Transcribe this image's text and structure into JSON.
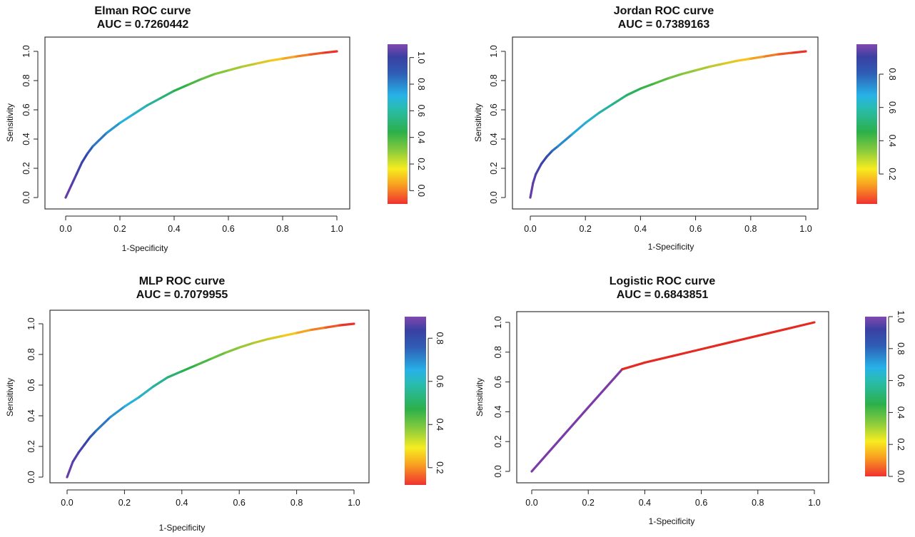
{
  "chart_data": [
    {
      "type": "line",
      "title": "Elman ROC curve",
      "subtitle": "AUC = 0.7260442",
      "xlabel": "1-Specificity",
      "ylabel": "Sensitivity",
      "xlim": [
        0,
        1
      ],
      "ylim": [
        0,
        1
      ],
      "x_ticks": [
        "0.0",
        "0.2",
        "0.4",
        "0.6",
        "0.8",
        "1.0"
      ],
      "y_ticks": [
        "0.0",
        "0.2",
        "0.4",
        "0.6",
        "0.8",
        "1.0"
      ],
      "series": [
        {
          "x": [
            0,
            0.02,
            0.04,
            0.06,
            0.08,
            0.1,
            0.15,
            0.2,
            0.25,
            0.3,
            0.35,
            0.4,
            0.45,
            0.5,
            0.55,
            0.6,
            0.65,
            0.7,
            0.75,
            0.8,
            0.85,
            0.9,
            0.95,
            1.0
          ],
          "y": [
            0,
            0.08,
            0.16,
            0.24,
            0.3,
            0.35,
            0.44,
            0.51,
            0.57,
            0.63,
            0.68,
            0.73,
            0.77,
            0.81,
            0.845,
            0.87,
            0.895,
            0.915,
            0.935,
            0.95,
            0.965,
            0.978,
            0.99,
            1.0
          ]
        }
      ],
      "colorbar": {
        "ticks": [
          "0.0",
          "0.2",
          "0.4",
          "0.6",
          "0.8",
          "1.0"
        ],
        "range": [
          -0.1,
          1.1
        ]
      },
      "grid": false,
      "legend": "none"
    },
    {
      "type": "line",
      "title": "Jordan ROC curve",
      "subtitle": "AUC = 0.7389163",
      "xlabel": "1-Specificity",
      "ylabel": "Sensitivity",
      "xlim": [
        0,
        1
      ],
      "ylim": [
        0,
        1
      ],
      "x_ticks": [
        "0.0",
        "0.2",
        "0.4",
        "0.6",
        "0.8",
        "1.0"
      ],
      "y_ticks": [
        "0.0",
        "0.2",
        "0.4",
        "0.6",
        "0.8",
        "1.0"
      ],
      "series": [
        {
          "x": [
            0,
            0.01,
            0.02,
            0.04,
            0.06,
            0.08,
            0.1,
            0.15,
            0.2,
            0.25,
            0.3,
            0.35,
            0.4,
            0.45,
            0.5,
            0.55,
            0.6,
            0.65,
            0.7,
            0.75,
            0.8,
            0.85,
            0.9,
            0.95,
            1.0
          ],
          "y": [
            0,
            0.1,
            0.16,
            0.23,
            0.28,
            0.32,
            0.35,
            0.43,
            0.51,
            0.58,
            0.64,
            0.7,
            0.745,
            0.78,
            0.815,
            0.845,
            0.87,
            0.895,
            0.915,
            0.935,
            0.95,
            0.965,
            0.98,
            0.99,
            1.0
          ]
        }
      ],
      "colorbar": {
        "ticks": [
          "0.2",
          "0.4",
          "0.6",
          "0.8"
        ],
        "range": [
          0.02,
          0.98
        ]
      },
      "grid": false,
      "legend": "none"
    },
    {
      "type": "line",
      "title": "MLP ROC curve",
      "subtitle": "AUC = 0.7079955",
      "xlabel": "1-Specificity",
      "ylabel": "Sensitivity",
      "xlim": [
        0,
        1
      ],
      "ylim": [
        0,
        1
      ],
      "x_ticks": [
        "0.0",
        "0.2",
        "0.4",
        "0.6",
        "0.8",
        "1.0"
      ],
      "y_ticks": [
        "0.0",
        "0.2",
        "0.4",
        "0.6",
        "0.8",
        "1.0"
      ],
      "series": [
        {
          "x": [
            0,
            0.02,
            0.04,
            0.06,
            0.08,
            0.1,
            0.15,
            0.2,
            0.25,
            0.3,
            0.35,
            0.4,
            0.45,
            0.5,
            0.55,
            0.6,
            0.65,
            0.7,
            0.75,
            0.8,
            0.85,
            0.9,
            0.95,
            1.0
          ],
          "y": [
            0,
            0.1,
            0.16,
            0.21,
            0.26,
            0.3,
            0.39,
            0.46,
            0.52,
            0.59,
            0.65,
            0.69,
            0.73,
            0.77,
            0.81,
            0.845,
            0.875,
            0.9,
            0.92,
            0.94,
            0.96,
            0.975,
            0.99,
            1.0
          ]
        }
      ],
      "colorbar": {
        "ticks": [
          "0.2",
          "0.4",
          "0.6",
          "0.8"
        ],
        "range": [
          0.12,
          0.9
        ]
      },
      "grid": false,
      "legend": "none"
    },
    {
      "type": "line",
      "title": "Logistic ROC curve",
      "subtitle": "AUC = 0.6843851",
      "xlabel": "1-Specificity",
      "ylabel": "Sensitivity",
      "xlim": [
        0,
        1
      ],
      "ylim": [
        0,
        1
      ],
      "x_ticks": [
        "0.0",
        "0.2",
        "0.4",
        "0.6",
        "0.8",
        "1.0"
      ],
      "y_ticks": [
        "0.0",
        "0.2",
        "0.4",
        "0.6",
        "0.8",
        "1.0"
      ],
      "series": [
        {
          "x": [
            0,
            0.1,
            0.2,
            0.32,
            0.4,
            0.5,
            0.6,
            0.7,
            0.8,
            0.9,
            1.0
          ],
          "y": [
            0,
            0.215,
            0.43,
            0.685,
            0.73,
            0.775,
            0.82,
            0.865,
            0.91,
            0.955,
            1.0
          ],
          "colors": [
            "#7a3aa8",
            "#7a3aa8",
            "#7a3aa8",
            "#e52a22",
            "#e52a22",
            "#e52a22",
            "#e52a22",
            "#e52a22",
            "#e52a22",
            "#e52a22"
          ]
        }
      ],
      "colorbar": {
        "ticks": [
          "0.0",
          "0.2",
          "0.4",
          "0.6",
          "0.8",
          "1.0"
        ],
        "range": [
          0,
          1
        ]
      },
      "grid": false,
      "legend": "none"
    }
  ]
}
